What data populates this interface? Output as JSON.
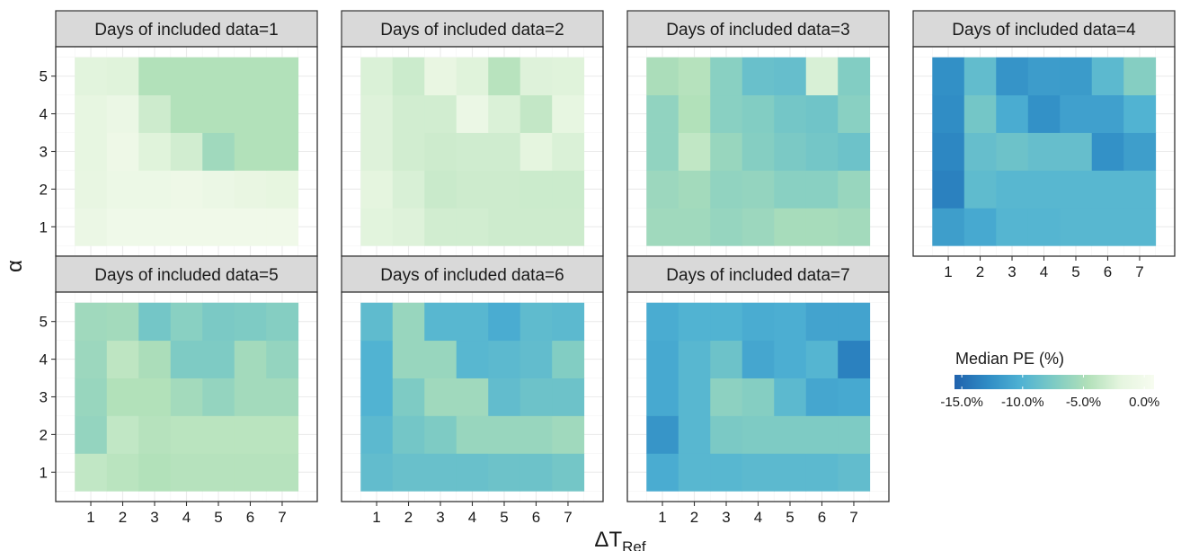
{
  "chart_data": {
    "type": "heatmap",
    "facet_label_prefix": "Days of included data=",
    "facets": [
      1,
      2,
      3,
      4,
      5,
      6,
      7
    ],
    "x": [
      1,
      2,
      3,
      4,
      5,
      6,
      7
    ],
    "y": [
      1,
      2,
      3,
      4,
      5
    ],
    "x_ticks": [
      "1",
      "2",
      "3",
      "4",
      "5",
      "6",
      "7"
    ],
    "y_ticks": [
      "1",
      "2",
      "3",
      "4",
      "5"
    ],
    "xlabel": "ΔT",
    "xlabel_sub": "Ref",
    "ylabel": "α",
    "legend": {
      "title": "Median PE (%)",
      "ticks": [
        "-15.0%",
        "-10.0%",
        "-5.0%",
        "0.0%"
      ],
      "tick_values": [
        -15,
        -10,
        -5,
        0
      ],
      "range": [
        -15.6,
        0.8
      ],
      "colors": [
        "#2062ad",
        "#2f8cc5",
        "#4fb2d3",
        "#7ecbc4",
        "#b1e0b9",
        "#e5f5df",
        "#f7fcf0"
      ]
    },
    "values_note": "values[facet][alpha 1..5][dT 1..7], Median PE (%) estimated from fill colour",
    "values": [
      [
        [
          -1.0,
          -0.4,
          -0.4,
          -0.3,
          -0.3,
          -0.3,
          -0.3
        ],
        [
          -1.5,
          -0.8,
          -0.8,
          -0.6,
          -1.0,
          -1.4,
          -1.7
        ],
        [
          -1.6,
          -0.6,
          -2.2,
          -3.0,
          -5.6,
          -4.6,
          -4.6
        ],
        [
          -1.6,
          -1.0,
          -3.2,
          -4.6,
          -4.6,
          -4.6,
          -4.6
        ],
        [
          -2.1,
          -2.2,
          -4.6,
          -4.6,
          -4.6,
          -4.6,
          -4.6
        ]
      ],
      [
        [
          -2.1,
          -2.3,
          -3.0,
          -3.0,
          -3.2,
          -3.2,
          -3.2
        ],
        [
          -1.9,
          -2.6,
          -3.4,
          -3.2,
          -3.2,
          -3.3,
          -3.3
        ],
        [
          -2.3,
          -3.0,
          -3.2,
          -3.1,
          -3.1,
          -1.9,
          -2.5
        ],
        [
          -2.3,
          -3.0,
          -3.0,
          -1.0,
          -2.5,
          -3.7,
          -1.6
        ],
        [
          -2.5,
          -3.3,
          -1.4,
          -2.2,
          -4.3,
          -2.3,
          -2.2
        ]
      ],
      [
        [
          -5.6,
          -5.6,
          -6.1,
          -5.8,
          -5.2,
          -5.2,
          -5.4
        ],
        [
          -5.8,
          -5.4,
          -6.4,
          -6.2,
          -6.8,
          -6.8,
          -6.0
        ],
        [
          -6.4,
          -3.8,
          -6.0,
          -7.0,
          -7.6,
          -8.0,
          -8.4
        ],
        [
          -6.4,
          -4.6,
          -6.8,
          -7.2,
          -8.0,
          -8.2,
          -6.8
        ],
        [
          -5.0,
          -4.4,
          -6.8,
          -8.6,
          -8.8,
          -2.6,
          -7.2
        ]
      ],
      [
        [
          -11.6,
          -10.8,
          -9.8,
          -9.8,
          -9.6,
          -9.6,
          -9.6
        ],
        [
          -13.6,
          -9.2,
          -9.6,
          -9.6,
          -9.6,
          -9.6,
          -9.6
        ],
        [
          -13.2,
          -8.8,
          -8.4,
          -8.8,
          -8.8,
          -12.5,
          -11.6
        ],
        [
          -12.8,
          -8.0,
          -10.6,
          -12.5,
          -11.4,
          -11.4,
          -10.0
        ],
        [
          -12.6,
          -9.0,
          -12.3,
          -11.7,
          -11.8,
          -9.4,
          -7.0
        ]
      ],
      [
        [
          -3.8,
          -4.2,
          -4.6,
          -4.4,
          -4.4,
          -4.4,
          -4.4
        ],
        [
          -6.2,
          -3.8,
          -4.4,
          -4.2,
          -4.2,
          -4.2,
          -4.2
        ],
        [
          -6.0,
          -4.6,
          -4.6,
          -5.4,
          -6.2,
          -5.4,
          -5.4
        ],
        [
          -5.8,
          -4.0,
          -5.0,
          -7.4,
          -7.4,
          -5.4,
          -6.2
        ],
        [
          -5.6,
          -5.4,
          -8.0,
          -6.8,
          -7.6,
          -7.4,
          -7.0
        ]
      ],
      [
        [
          -9.0,
          -8.6,
          -8.6,
          -8.6,
          -8.4,
          -8.4,
          -8.0
        ],
        [
          -9.4,
          -8.0,
          -7.4,
          -6.0,
          -6.0,
          -6.0,
          -5.6
        ],
        [
          -10.0,
          -7.4,
          -5.6,
          -5.6,
          -9.0,
          -8.4,
          -8.4
        ],
        [
          -10.0,
          -6.0,
          -6.0,
          -9.6,
          -9.4,
          -9.0,
          -7.2
        ],
        [
          -9.2,
          -6.0,
          -9.6,
          -9.6,
          -10.6,
          -9.2,
          -9.4
        ]
      ],
      [
        [
          -10.6,
          -9.6,
          -9.6,
          -9.4,
          -9.4,
          -9.4,
          -9.0
        ],
        [
          -12.2,
          -9.6,
          -7.6,
          -7.4,
          -7.4,
          -7.4,
          -7.4
        ],
        [
          -10.8,
          -9.6,
          -6.6,
          -7.0,
          -9.4,
          -11.0,
          -10.8
        ],
        [
          -10.8,
          -9.6,
          -8.4,
          -11.0,
          -10.4,
          -9.8,
          -13.6
        ],
        [
          -10.6,
          -10.0,
          -10.0,
          -10.6,
          -10.4,
          -11.2,
          -11.2
        ]
      ]
    ]
  }
}
